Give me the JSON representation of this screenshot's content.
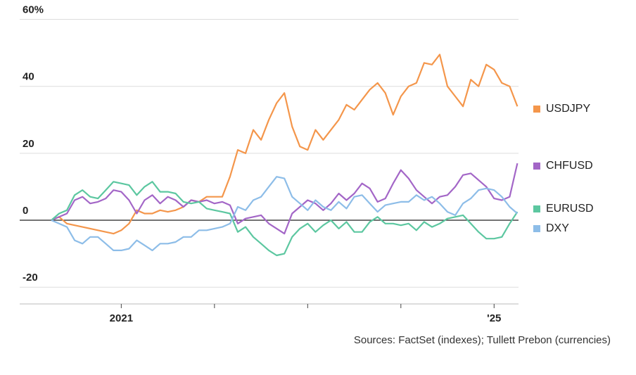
{
  "chart_data": {
    "type": "line",
    "source": "Sources: FactSet (indexes); Tullett Prebon (currencies)",
    "categories": [
      null,
      null,
      null,
      null,
      null,
      null,
      null,
      null,
      null,
      "2021",
      null,
      null,
      null,
      null,
      null,
      null,
      null,
      null,
      null,
      null,
      null,
      null,
      null,
      null,
      null,
      null,
      null,
      null,
      null,
      null,
      null,
      null,
      null,
      null,
      null,
      null,
      null,
      null,
      null,
      null,
      null,
      null,
      null,
      null,
      null,
      null,
      null,
      null,
      null,
      null,
      null,
      null,
      null,
      null,
      null,
      null,
      null,
      "'25",
      null,
      null,
      null
    ],
    "series": [
      {
        "name": "USDJPY",
        "color": "#f4964b",
        "values": [
          0,
          1,
          -1,
          -1.5,
          -2,
          -2.5,
          -3,
          -3.5,
          -4,
          -3,
          -1,
          3,
          2,
          2,
          3,
          2.5,
          3,
          4,
          6,
          5.5,
          7,
          7,
          7,
          13,
          21,
          20,
          27,
          24,
          30,
          35,
          38,
          28,
          22,
          21,
          27,
          24,
          27,
          30,
          34.5,
          33,
          36,
          39,
          41,
          38,
          31.5,
          37,
          40,
          41,
          47,
          46.5,
          49.5,
          40,
          37,
          34,
          42,
          40,
          46.5,
          45,
          41,
          40,
          34
        ]
      },
      {
        "name": "CHFUSD",
        "color": "#a366c7",
        "values": [
          0,
          1,
          2,
          6,
          7,
          5,
          5.5,
          6.5,
          9,
          8.5,
          6,
          2,
          6,
          7.5,
          5,
          7,
          6,
          4,
          6,
          5.5,
          6,
          5,
          5.5,
          4.5,
          -1,
          0.5,
          1,
          1.5,
          -1,
          -2.5,
          -4,
          2,
          4,
          6,
          5,
          3,
          5,
          8,
          6,
          8,
          11,
          9.5,
          5.5,
          6.5,
          11,
          15,
          12.5,
          9,
          7,
          5,
          7,
          7.5,
          10,
          13.5,
          14,
          12,
          10,
          6.5,
          6,
          7,
          17
        ]
      },
      {
        "name": "EURUSD",
        "color": "#5cc7a0",
        "values": [
          0,
          2,
          3,
          7.5,
          9,
          7,
          6.5,
          9,
          11.5,
          11,
          10.5,
          7.5,
          10,
          11.5,
          8.5,
          8.5,
          8,
          5.5,
          5,
          5.5,
          3.5,
          3,
          2.5,
          2,
          -3.5,
          -2,
          -5,
          -7,
          -9,
          -10.5,
          -10,
          -5,
          -2.5,
          -1,
          -3.5,
          -1.5,
          0,
          -2.5,
          -0.5,
          -3.5,
          -3.5,
          -0.5,
          1,
          -1,
          -1,
          -1.5,
          -1,
          -3,
          -0.5,
          -2,
          -1,
          0.5,
          1,
          1.5,
          -1,
          -3.5,
          -5.5,
          -5.5,
          -5,
          -1,
          2.5
        ]
      },
      {
        "name": "DXY",
        "color": "#8dbde8",
        "values": [
          0,
          -1,
          -2,
          -6,
          -7,
          -5,
          -5,
          -7,
          -9,
          -9,
          -8.5,
          -6,
          -7.5,
          -9,
          -7,
          -7,
          -6.5,
          -5,
          -5,
          -3,
          -3,
          -2.5,
          -2,
          -1,
          4,
          3,
          6,
          7,
          10,
          13,
          12.5,
          7,
          5,
          3,
          6,
          4,
          3,
          5.5,
          3.5,
          7,
          7.5,
          5,
          2.5,
          4.5,
          5,
          5.5,
          5.5,
          7.5,
          6,
          7,
          5,
          2.5,
          1.5,
          5,
          6.5,
          9,
          9.5,
          9,
          7,
          4,
          2
        ]
      }
    ],
    "ylim": [
      -25,
      62
    ],
    "yticks": [
      -20,
      0,
      20,
      40,
      {
        "value": 60,
        "label": "60%"
      }
    ],
    "grid": true
  }
}
